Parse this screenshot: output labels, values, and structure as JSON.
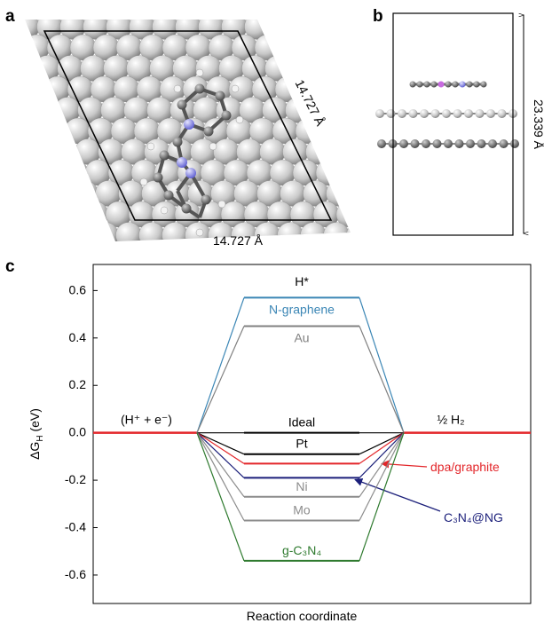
{
  "panels": {
    "a": {
      "label": "a",
      "edge_right": "14.727 Å",
      "edge_bottom": "14.727 Å"
    },
    "b": {
      "label": "b",
      "height": "23.339 Å"
    },
    "c": {
      "label": "c"
    }
  },
  "chart_data": {
    "type": "energy-diagram",
    "states": [
      "(H⁺ + e⁻)",
      "H*",
      "½ H₂"
    ],
    "y_label": {
      "main": "ΔG",
      "sub": "H",
      "unit": " (eV)"
    },
    "x_label": "Reaction coordinate",
    "ylim": [
      -0.72,
      0.71
    ],
    "yticks": [
      -0.6,
      -0.4,
      -0.2,
      {
        "value": 0,
        "label": "0.0"
      },
      0.2,
      0.4,
      0.6
    ],
    "baseline_color": "#e3262a",
    "series": [
      {
        "name": "N-graphene",
        "color": "#3b86b5",
        "value": 0.57
      },
      {
        "name": "Au",
        "color": "#808080",
        "value": 0.45
      },
      {
        "name": "Ideal",
        "color": "#000000",
        "value": 0
      },
      {
        "name": "Pt",
        "color": "#000000",
        "value": -0.09
      },
      {
        "name": "dpa/graphite",
        "color": "#e3262a",
        "value": -0.13
      },
      {
        "name": "C₃N₄@NG",
        "color": "#1b1f7a",
        "value": -0.19
      },
      {
        "name": "Ni",
        "color": "#8c8c8c",
        "value": -0.27
      },
      {
        "name": "Mo",
        "color": "#8c8c8c",
        "value": -0.37
      },
      {
        "name": "g-C₃N₄",
        "color": "#2e7a2e",
        "value": -0.54
      }
    ]
  }
}
